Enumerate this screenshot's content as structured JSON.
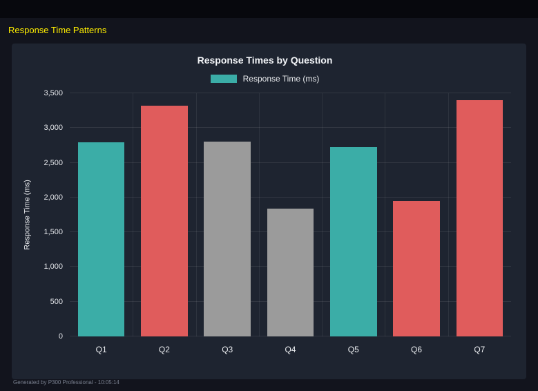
{
  "page": {
    "title": "Response Time Patterns",
    "footer": "Generated by P300 Professional - 10:05:14"
  },
  "chart_data": {
    "type": "bar",
    "title": "Response Times by Question",
    "legend": {
      "label": "Response Time (ms)",
      "color": "#3bada7"
    },
    "categories": [
      "Q1",
      "Q2",
      "Q3",
      "Q4",
      "Q5",
      "Q6",
      "Q7"
    ],
    "values": [
      2790,
      3320,
      2800,
      1840,
      2720,
      1950,
      3400
    ],
    "bar_colors": [
      "#3bada7",
      "#e05c5c",
      "#9b9b9b",
      "#9b9b9b",
      "#3bada7",
      "#e05c5c",
      "#e05c5c"
    ],
    "ylabel": "Response Time (ms)",
    "ylim": [
      0,
      3500
    ],
    "ytick_values": [
      0,
      500,
      1000,
      1500,
      2000,
      2500,
      3000,
      3500
    ],
    "ytick_labels": [
      "0",
      "500",
      "1,000",
      "1,500",
      "2,000",
      "2,500",
      "3,000",
      "3,500"
    ],
    "grid": true,
    "legend_position": "top"
  }
}
